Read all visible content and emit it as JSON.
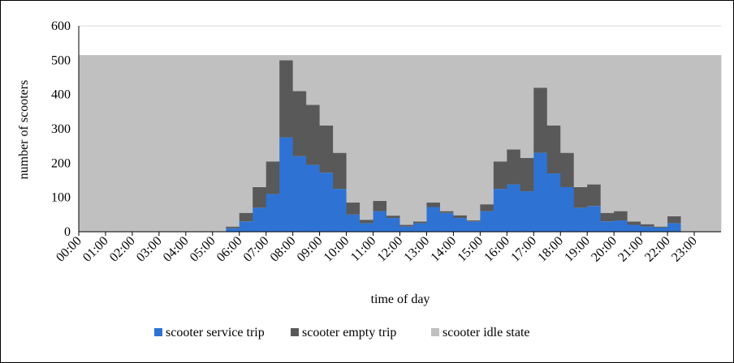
{
  "chart_data": {
    "type": "stacked_step_area",
    "xlabel": "time of day",
    "ylabel": "number of scooters",
    "x": [
      0,
      0.5,
      1,
      1.5,
      2,
      2.5,
      3,
      3.5,
      4,
      4.5,
      5,
      5.5,
      6,
      6.5,
      7,
      7.5,
      8,
      8.5,
      9,
      9.5,
      10,
      10.5,
      11,
      11.5,
      12,
      12.5,
      13,
      13.5,
      14,
      14.5,
      15,
      15.5,
      16,
      16.5,
      17,
      17.5,
      18,
      18.5,
      19,
      19.5,
      20,
      20.5,
      21,
      21.5,
      22,
      22.5,
      23,
      23.5
    ],
    "series": [
      {
        "name": "scooter service trip",
        "color": "#2e73d3",
        "values": [
          0,
          0,
          0,
          0,
          0,
          0,
          0,
          0,
          0,
          0,
          0,
          10,
          30,
          70,
          110,
          275,
          220,
          195,
          172,
          125,
          50,
          25,
          60,
          40,
          15,
          25,
          72,
          55,
          40,
          30,
          60,
          125,
          138,
          118,
          230,
          170,
          130,
          70,
          75,
          30,
          33,
          20,
          15,
          12,
          25,
          0,
          0,
          0
        ]
      },
      {
        "name": "scooter empty trip",
        "color": "#595959",
        "values": [
          0,
          0,
          0,
          0,
          0,
          0,
          0,
          0,
          0,
          0,
          0,
          5,
          25,
          60,
          95,
          225,
          190,
          175,
          138,
          105,
          35,
          10,
          30,
          7,
          5,
          5,
          13,
          5,
          8,
          3,
          20,
          80,
          102,
          97,
          190,
          140,
          100,
          60,
          63,
          25,
          27,
          10,
          7,
          3,
          20,
          0,
          0,
          0
        ]
      },
      {
        "name": "scooter idle state",
        "color": "#c0c0c0",
        "values": [
          515,
          515,
          515,
          515,
          515,
          515,
          515,
          515,
          515,
          515,
          515,
          500,
          460,
          385,
          310,
          15,
          105,
          145,
          205,
          285,
          430,
          480,
          425,
          468,
          495,
          485,
          430,
          455,
          467,
          482,
          435,
          310,
          275,
          300,
          95,
          205,
          285,
          385,
          377,
          460,
          455,
          485,
          493,
          500,
          470,
          515,
          515,
          515
        ]
      }
    ],
    "xlim": [
      0,
      24
    ],
    "xticks": [
      {
        "value": 0,
        "label": "00:00"
      },
      {
        "value": 1,
        "label": "01:00"
      },
      {
        "value": 2,
        "label": "02:00"
      },
      {
        "value": 3,
        "label": "03:00"
      },
      {
        "value": 4,
        "label": "04:00"
      },
      {
        "value": 5,
        "label": "05:00"
      },
      {
        "value": 6,
        "label": "06:00"
      },
      {
        "value": 7,
        "label": "07:00"
      },
      {
        "value": 8,
        "label": "08:00"
      },
      {
        "value": 9,
        "label": "09:00"
      },
      {
        "value": 10,
        "label": "10:00"
      },
      {
        "value": 11,
        "label": "11:00"
      },
      {
        "value": 12,
        "label": "12:00"
      },
      {
        "value": 13,
        "label": "13:00"
      },
      {
        "value": 14,
        "label": "14:00"
      },
      {
        "value": 15,
        "label": "15:00"
      },
      {
        "value": 16,
        "label": "16:00"
      },
      {
        "value": 17,
        "label": "17:00"
      },
      {
        "value": 18,
        "label": "18:00"
      },
      {
        "value": 19,
        "label": "19:00"
      },
      {
        "value": 20,
        "label": "20:00"
      },
      {
        "value": 21,
        "label": "21:00"
      },
      {
        "value": 22,
        "label": "22:00"
      },
      {
        "value": 23,
        "label": "23:00"
      }
    ],
    "ylim": [
      0,
      600
    ],
    "yticks": [
      0,
      100,
      200,
      300,
      400,
      500,
      600
    ],
    "grid": true,
    "legend": "bottom"
  }
}
